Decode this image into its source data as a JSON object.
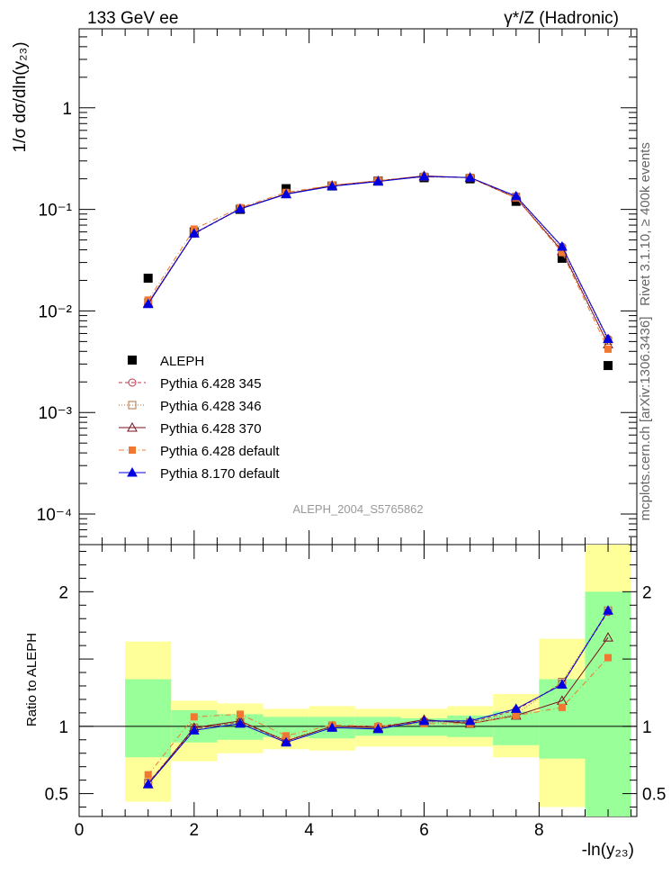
{
  "header": {
    "left": "133 GeV ee",
    "right": "γ*/Z (Hadronic)"
  },
  "side_text": {
    "rivet": "Rivet 3.1.10, ≥ 400k events",
    "mcplots": "mcplots.cern.ch [arXiv:1306.3436]"
  },
  "analysis_label": "ALEPH_2004_S5765862",
  "chart_data": [
    {
      "type": "line",
      "panel": "main",
      "ylabel": "1/σ  dσ/dln(y₂₃)",
      "yscale": "log",
      "ylim": [
        5e-05,
        6
      ],
      "xlim": [
        0,
        9.7
      ],
      "y_tick_labels": [
        "10⁻⁴",
        "10⁻³",
        "10⁻²",
        "10⁻¹",
        "1"
      ],
      "x": [
        1.2,
        2.0,
        2.8,
        3.6,
        4.4,
        5.2,
        6.0,
        6.8,
        7.6,
        8.4,
        9.2
      ],
      "series": [
        {
          "name": "ALEPH",
          "color": "#000000",
          "marker": "square-filled",
          "values": [
            0.021,
            0.06,
            0.1,
            0.16,
            0.17,
            0.19,
            0.205,
            0.2,
            0.12,
            0.033,
            0.0029
          ]
        },
        {
          "name": "Pythia 6.428 345",
          "color": "#c0304a",
          "marker": "circle-open",
          "dash": "dashed",
          "values": [
            0.0118,
            0.0575,
            0.101,
            0.142,
            0.17,
            0.19,
            0.212,
            0.206,
            0.135,
            0.043,
            0.0053
          ]
        },
        {
          "name": "Pythia 6.428 346",
          "color": "#b07040",
          "marker": "square-open",
          "dash": "dotted",
          "values": [
            0.0122,
            0.0585,
            0.102,
            0.143,
            0.171,
            0.19,
            0.21,
            0.205,
            0.133,
            0.041,
            0.0051
          ]
        },
        {
          "name": "Pythia 6.428 370",
          "color": "#7a1020",
          "marker": "triangle-open",
          "dash": "solid",
          "values": [
            0.0119,
            0.058,
            0.1015,
            0.142,
            0.172,
            0.191,
            0.214,
            0.205,
            0.13,
            0.039,
            0.0047
          ]
        },
        {
          "name": "Pythia 6.428 default",
          "color": "#f07830",
          "marker": "square-filled",
          "dash": "dashdot",
          "values": [
            0.0128,
            0.064,
            0.104,
            0.147,
            0.173,
            0.192,
            0.209,
            0.205,
            0.13,
            0.0375,
            0.0042
          ]
        },
        {
          "name": "Pythia 8.170 default",
          "color": "#0000e0",
          "marker": "triangle-filled",
          "dash": "solid",
          "values": [
            0.0117,
            0.058,
            0.101,
            0.141,
            0.169,
            0.188,
            0.211,
            0.206,
            0.135,
            0.043,
            0.0053
          ]
        }
      ]
    },
    {
      "type": "line",
      "panel": "ratio",
      "ylabel": "Ratio to ALEPH",
      "xlabel": "-ln(y₂₃)",
      "ylim": [
        0.33,
        2.35
      ],
      "xlim": [
        0,
        9.7
      ],
      "x_tick_labels": [
        "0",
        "2",
        "4",
        "6",
        "8"
      ],
      "y_tick_labels": [
        "0.5",
        "1",
        "2"
      ],
      "bins": [
        {
          "lo": 0.8,
          "hi": 1.6,
          "green": [
            0.77,
            1.35
          ],
          "yellow": [
            0.44,
            1.63
          ]
        },
        {
          "lo": 1.6,
          "hi": 2.4,
          "green": [
            0.88,
            1.12
          ],
          "yellow": [
            0.74,
            1.19
          ]
        },
        {
          "lo": 2.4,
          "hi": 3.2,
          "green": [
            0.9,
            1.09
          ],
          "yellow": [
            0.8,
            1.17
          ]
        },
        {
          "lo": 3.2,
          "hi": 4.0,
          "green": [
            0.92,
            1.07
          ],
          "yellow": [
            0.83,
            1.13
          ]
        },
        {
          "lo": 4.0,
          "hi": 4.8,
          "green": [
            0.91,
            1.07
          ],
          "yellow": [
            0.82,
            1.15
          ]
        },
        {
          "lo": 4.8,
          "hi": 5.6,
          "green": [
            0.93,
            1.07
          ],
          "yellow": [
            0.85,
            1.13
          ]
        },
        {
          "lo": 5.6,
          "hi": 6.4,
          "green": [
            0.93,
            1.06
          ],
          "yellow": [
            0.85,
            1.13
          ]
        },
        {
          "lo": 6.4,
          "hi": 7.2,
          "green": [
            0.92,
            1.08
          ],
          "yellow": [
            0.85,
            1.15
          ]
        },
        {
          "lo": 7.2,
          "hi": 8.0,
          "green": [
            0.86,
            1.11
          ],
          "yellow": [
            0.77,
            1.24
          ]
        },
        {
          "lo": 8.0,
          "hi": 8.8,
          "green": [
            0.76,
            1.35
          ],
          "yellow": [
            0.4,
            1.65
          ]
        },
        {
          "lo": 8.8,
          "hi": 9.6,
          "green": [
            0.33,
            2.0
          ],
          "yellow": [
            0.33,
            2.35
          ]
        }
      ],
      "x": [
        1.2,
        2.0,
        2.8,
        3.6,
        4.4,
        5.2,
        6.0,
        6.8,
        7.6,
        8.4,
        9.2
      ],
      "series": [
        {
          "name": "Pythia 6.428 345",
          "color": "#c0304a",
          "marker": "circle-open",
          "dash": "dashed",
          "values": [
            0.58,
            0.98,
            1.03,
            0.89,
            1.0,
            1.0,
            1.04,
            1.03,
            1.12,
            1.32,
            1.85
          ]
        },
        {
          "name": "Pythia 6.428 346",
          "color": "#b07040",
          "marker": "square-open",
          "dash": "dotted",
          "values": [
            0.58,
            0.99,
            1.03,
            0.9,
            1.0,
            0.99,
            1.03,
            1.03,
            1.09,
            1.33,
            1.86
          ]
        },
        {
          "name": "Pythia 6.428 370",
          "color": "#7a1020",
          "marker": "triangle-open",
          "dash": "solid",
          "values": [
            0.57,
            0.99,
            1.04,
            0.89,
            1.0,
            0.99,
            1.05,
            1.02,
            1.08,
            1.19,
            1.66
          ]
        },
        {
          "name": "Pythia 6.428 default",
          "color": "#f07830",
          "marker": "square-filled",
          "dash": "dashdot",
          "values": [
            0.64,
            1.07,
            1.09,
            0.93,
            1.01,
            1.0,
            1.02,
            1.02,
            1.08,
            1.14,
            1.51
          ]
        },
        {
          "name": "Pythia 8.170 default",
          "color": "#0000e0",
          "marker": "triangle-filled",
          "dash": "solid",
          "values": [
            0.57,
            0.97,
            1.02,
            0.88,
            0.99,
            0.98,
            1.04,
            1.04,
            1.13,
            1.31,
            1.86
          ]
        }
      ]
    }
  ]
}
